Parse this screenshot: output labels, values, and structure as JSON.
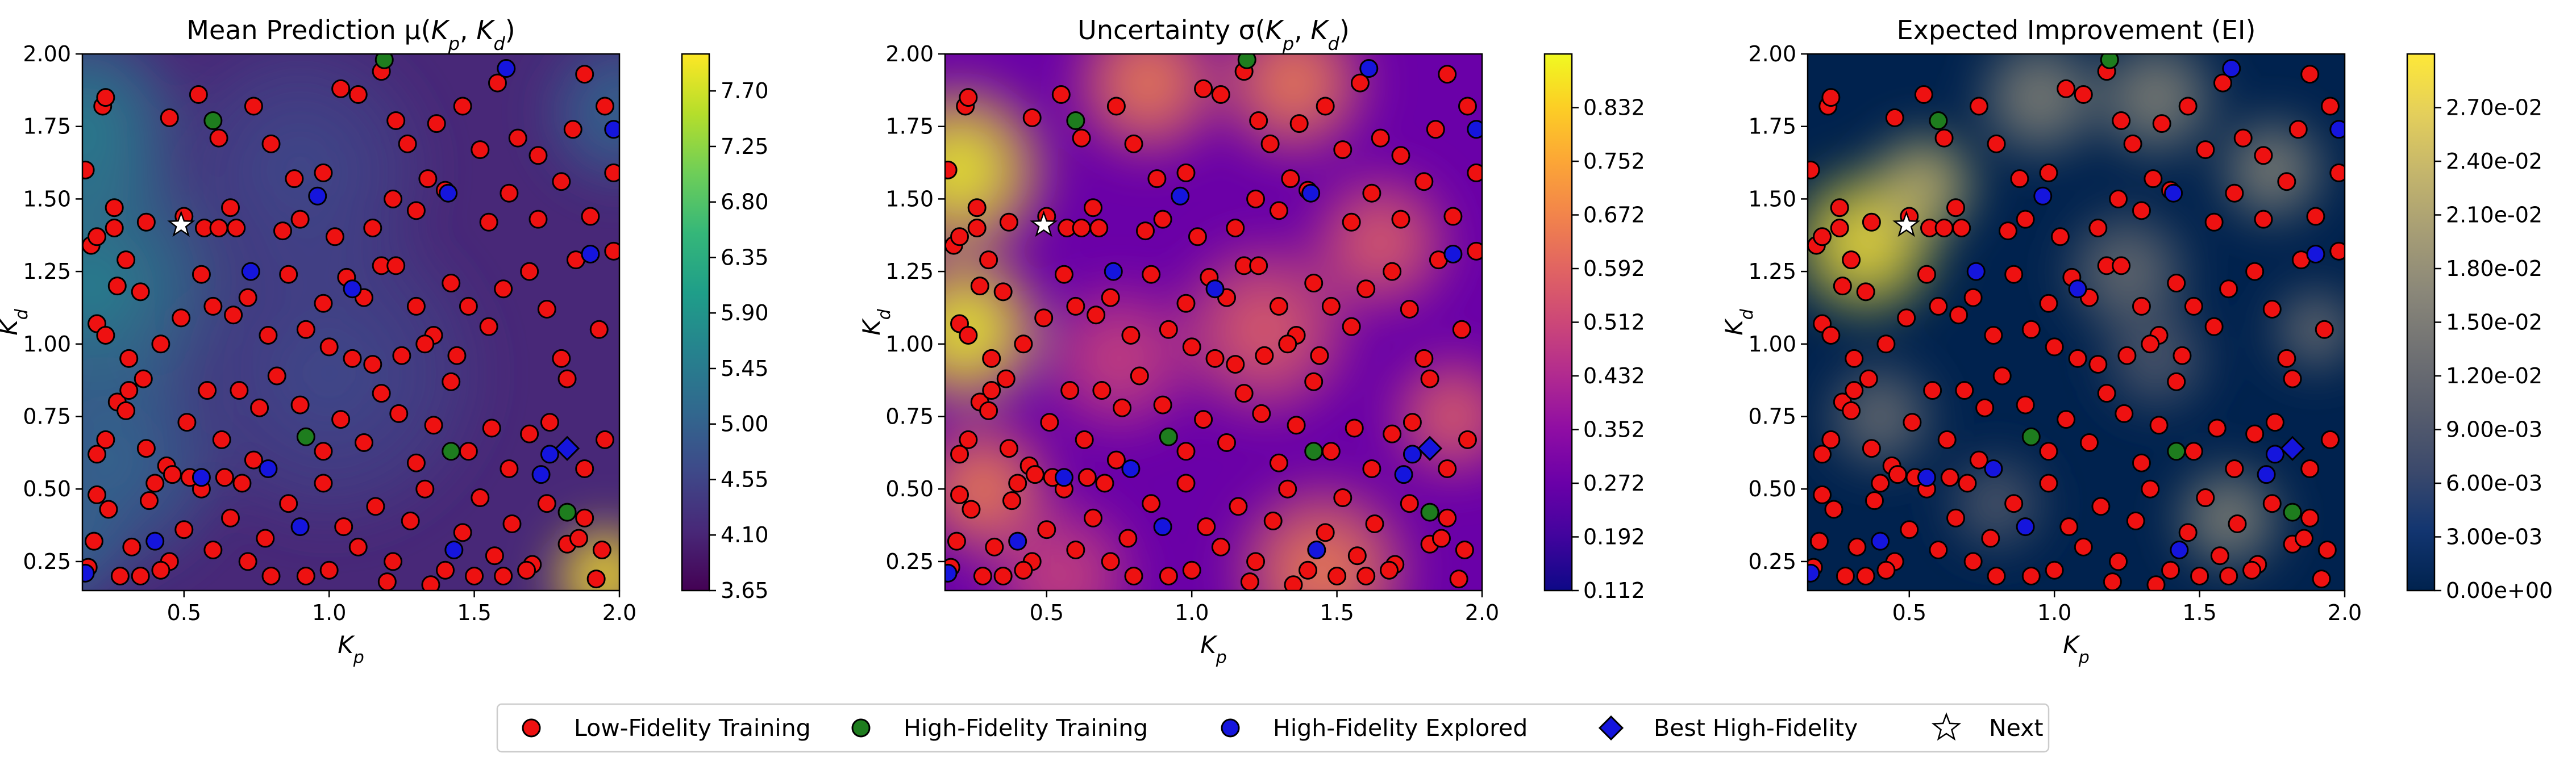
{
  "legend": {
    "placement": "bottom-center",
    "items": [
      {
        "label": "Low-Fidelity Training",
        "marker": "circle",
        "color": "#ee1111"
      },
      {
        "label": "High-Fidelity Training",
        "marker": "circle",
        "color": "#1e7d1e"
      },
      {
        "label": "High-Fidelity Explored",
        "marker": "circle",
        "color": "#1515dd"
      },
      {
        "label": "Best High-Fidelity",
        "marker": "diamond",
        "color": "#1515dd"
      },
      {
        "label": "Next",
        "marker": "star",
        "color": "#ffffff"
      }
    ]
  },
  "chart_data": [
    {
      "type": "heatmap",
      "title": "Mean Prediction μ(K_p, K_d)",
      "title_main": "Mean Prediction μ(",
      "xlabel": "K_p",
      "ylabel": "K_d",
      "xlim": [
        0.15,
        2.0
      ],
      "ylim": [
        0.15,
        2.0
      ],
      "xticks": [
        "0.5",
        "1.0",
        "1.5",
        "2.0"
      ],
      "yticks": [
        "0.25",
        "0.50",
        "0.75",
        "1.00",
        "1.25",
        "1.50",
        "1.75",
        "2.00"
      ],
      "colormap": "viridis",
      "colorbar_range": [
        3.65,
        8.0
      ],
      "colorbar_ticks": [
        "3.65",
        "4.10",
        "4.55",
        "5.00",
        "5.45",
        "5.90",
        "6.35",
        "6.80",
        "7.25",
        "7.70"
      ],
      "grid": false
    },
    {
      "type": "heatmap",
      "title": "Uncertainty σ(K_p, K_d)",
      "title_main": "Uncertainty σ(",
      "xlabel": "K_p",
      "ylabel": "K_d",
      "xlim": [
        0.15,
        2.0
      ],
      "ylim": [
        0.15,
        2.0
      ],
      "xticks": [
        "0.5",
        "1.0",
        "1.5",
        "2.0"
      ],
      "yticks": [
        "0.25",
        "0.50",
        "0.75",
        "1.00",
        "1.25",
        "1.50",
        "1.75",
        "2.00"
      ],
      "colormap": "plasma",
      "colorbar_range": [
        0.112,
        0.912
      ],
      "colorbar_ticks": [
        "0.112",
        "0.192",
        "0.272",
        "0.352",
        "0.432",
        "0.512",
        "0.592",
        "0.672",
        "0.752",
        "0.832"
      ],
      "grid": false
    },
    {
      "type": "heatmap",
      "title": "Expected Improvement (EI)",
      "title_main": "Expected Improvement (EI)",
      "xlabel": "K_p",
      "ylabel": "K_d",
      "xlim": [
        0.15,
        2.0
      ],
      "ylim": [
        0.15,
        2.0
      ],
      "xticks": [
        "0.5",
        "1.0",
        "1.5",
        "2.0"
      ],
      "yticks": [
        "0.25",
        "0.50",
        "0.75",
        "1.00",
        "1.25",
        "1.50",
        "1.75",
        "2.00"
      ],
      "colormap": "cividis",
      "colorbar_range": [
        0.0,
        0.03
      ],
      "colorbar_ticks": [
        "0.00e+00",
        "3.00e-03",
        "6.00e-03",
        "9.00e-03",
        "1.20e-02",
        "1.50e-02",
        "1.80e-02",
        "2.10e-02",
        "2.40e-02",
        "2.70e-02"
      ],
      "grid": false
    }
  ],
  "points": {
    "low_fidelity": [
      [
        0.16,
        1.6
      ],
      [
        0.18,
        1.34
      ],
      [
        0.2,
        1.37
      ],
      [
        0.22,
        1.82
      ],
      [
        0.23,
        1.85
      ],
      [
        0.26,
        1.47
      ],
      [
        0.3,
        1.29
      ],
      [
        0.37,
        1.42
      ],
      [
        0.45,
        1.78
      ],
      [
        0.55,
        1.86
      ],
      [
        0.62,
        1.71
      ],
      [
        0.66,
        1.47
      ],
      [
        0.74,
        1.82
      ],
      [
        0.8,
        1.69
      ],
      [
        0.88,
        1.57
      ],
      [
        0.98,
        1.59
      ],
      [
        1.04,
        1.88
      ],
      [
        1.1,
        1.86
      ],
      [
        1.18,
        1.94
      ],
      [
        1.23,
        1.77
      ],
      [
        1.27,
        1.69
      ],
      [
        1.37,
        1.76
      ],
      [
        1.46,
        1.82
      ],
      [
        1.52,
        1.67
      ],
      [
        1.58,
        1.9
      ],
      [
        1.65,
        1.71
      ],
      [
        1.72,
        1.65
      ],
      [
        1.84,
        1.74
      ],
      [
        1.88,
        1.93
      ],
      [
        1.95,
        1.82
      ],
      [
        1.98,
        1.59
      ],
      [
        0.2,
        1.07
      ],
      [
        0.23,
        1.03
      ],
      [
        0.27,
        1.2
      ],
      [
        0.35,
        1.18
      ],
      [
        0.42,
        1.0
      ],
      [
        0.49,
        1.09
      ],
      [
        0.56,
        1.24
      ],
      [
        0.6,
        1.13
      ],
      [
        0.67,
        1.1
      ],
      [
        0.72,
        1.16
      ],
      [
        0.79,
        1.03
      ],
      [
        0.86,
        1.24
      ],
      [
        0.92,
        1.05
      ],
      [
        0.98,
        1.14
      ],
      [
        1.06,
        1.23
      ],
      [
        1.12,
        1.16
      ],
      [
        1.18,
        1.27
      ],
      [
        1.23,
        1.27
      ],
      [
        1.3,
        1.13
      ],
      [
        1.36,
        1.03
      ],
      [
        1.42,
        1.21
      ],
      [
        1.48,
        1.13
      ],
      [
        1.55,
        1.06
      ],
      [
        1.6,
        1.19
      ],
      [
        1.69,
        1.25
      ],
      [
        1.75,
        1.12
      ],
      [
        1.8,
        0.95
      ],
      [
        1.85,
        1.29
      ],
      [
        1.93,
        1.05
      ],
      [
        1.98,
        1.32
      ],
      [
        0.2,
        0.62
      ],
      [
        0.23,
        0.67
      ],
      [
        0.27,
        0.8
      ],
      [
        0.31,
        0.84
      ],
      [
        0.37,
        0.64
      ],
      [
        0.44,
        0.58
      ],
      [
        0.51,
        0.73
      ],
      [
        0.58,
        0.84
      ],
      [
        0.63,
        0.67
      ],
      [
        0.69,
        0.84
      ],
      [
        0.76,
        0.78
      ],
      [
        0.82,
        0.89
      ],
      [
        0.9,
        0.79
      ],
      [
        0.98,
        0.63
      ],
      [
        1.04,
        0.74
      ],
      [
        1.12,
        0.66
      ],
      [
        1.18,
        0.83
      ],
      [
        1.24,
        0.76
      ],
      [
        1.3,
        0.59
      ],
      [
        1.36,
        0.72
      ],
      [
        1.42,
        0.87
      ],
      [
        1.48,
        0.63
      ],
      [
        1.56,
        0.71
      ],
      [
        1.62,
        0.57
      ],
      [
        1.69,
        0.69
      ],
      [
        1.76,
        0.73
      ],
      [
        1.82,
        0.88
      ],
      [
        1.88,
        0.57
      ],
      [
        1.95,
        0.67
      ],
      [
        0.19,
        0.32
      ],
      [
        0.24,
        0.43
      ],
      [
        0.32,
        0.3
      ],
      [
        0.38,
        0.46
      ],
      [
        0.45,
        0.25
      ],
      [
        0.5,
        0.36
      ],
      [
        0.56,
        0.5
      ],
      [
        0.6,
        0.29
      ],
      [
        0.66,
        0.4
      ],
      [
        0.72,
        0.25
      ],
      [
        0.78,
        0.33
      ],
      [
        0.86,
        0.45
      ],
      [
        0.92,
        0.2
      ],
      [
        0.98,
        0.52
      ],
      [
        1.05,
        0.37
      ],
      [
        1.1,
        0.3
      ],
      [
        1.16,
        0.44
      ],
      [
        1.22,
        0.25
      ],
      [
        1.28,
        0.39
      ],
      [
        1.33,
        0.5
      ],
      [
        1.4,
        0.22
      ],
      [
        1.46,
        0.35
      ],
      [
        1.52,
        0.47
      ],
      [
        1.57,
        0.27
      ],
      [
        1.63,
        0.38
      ],
      [
        1.7,
        0.24
      ],
      [
        1.75,
        0.45
      ],
      [
        1.82,
        0.31
      ],
      [
        1.88,
        0.4
      ],
      [
        1.94,
        0.29
      ],
      [
        0.5,
        1.44
      ],
      [
        0.57,
        1.4
      ],
      [
        0.62,
        1.4
      ],
      [
        0.68,
        1.4
      ],
      [
        0.4,
        0.52
      ],
      [
        0.46,
        0.55
      ],
      [
        0.52,
        0.54
      ],
      [
        0.64,
        0.54
      ],
      [
        0.7,
        0.52
      ],
      [
        0.74,
        0.6
      ],
      [
        0.31,
        0.95
      ],
      [
        0.36,
        0.88
      ],
      [
        0.26,
        1.4
      ],
      [
        0.3,
        0.77
      ],
      [
        1.0,
        0.99
      ],
      [
        1.08,
        0.95
      ],
      [
        1.15,
        0.93
      ],
      [
        1.25,
        0.96
      ],
      [
        1.33,
        1.0
      ],
      [
        1.44,
        0.96
      ],
      [
        0.84,
        1.39
      ],
      [
        0.9,
        1.43
      ],
      [
        1.02,
        1.37
      ],
      [
        1.15,
        1.4
      ],
      [
        1.22,
        1.5
      ],
      [
        1.3,
        1.46
      ],
      [
        1.34,
        1.57
      ],
      [
        1.4,
        1.53
      ],
      [
        1.55,
        1.42
      ],
      [
        1.62,
        1.52
      ],
      [
        1.72,
        1.43
      ],
      [
        1.8,
        1.56
      ],
      [
        1.9,
        1.44
      ],
      [
        0.2,
        0.48
      ],
      [
        0.17,
        0.23
      ],
      [
        0.28,
        0.2
      ],
      [
        0.35,
        0.2
      ],
      [
        0.42,
        0.22
      ],
      [
        0.8,
        0.2
      ],
      [
        1.0,
        0.22
      ],
      [
        1.2,
        0.18
      ],
      [
        1.35,
        0.17
      ],
      [
        1.5,
        0.2
      ],
      [
        1.6,
        0.2
      ],
      [
        1.68,
        0.22
      ],
      [
        1.86,
        0.33
      ],
      [
        1.92,
        0.19
      ]
    ],
    "high_fidelity": [
      [
        0.6,
        1.77
      ],
      [
        1.19,
        1.98
      ],
      [
        0.92,
        0.68
      ],
      [
        1.42,
        0.63
      ],
      [
        1.82,
        0.42
      ]
    ],
    "explored": [
      [
        0.73,
        1.25
      ],
      [
        0.96,
        1.51
      ],
      [
        1.08,
        1.19
      ],
      [
        1.41,
        1.52
      ],
      [
        1.9,
        1.31
      ],
      [
        1.61,
        1.95
      ],
      [
        0.56,
        0.54
      ],
      [
        0.79,
        0.57
      ],
      [
        0.9,
        0.37
      ],
      [
        0.4,
        0.32
      ],
      [
        1.43,
        0.29
      ],
      [
        1.76,
        0.62
      ],
      [
        1.73,
        0.55
      ],
      [
        0.16,
        0.21
      ],
      [
        1.98,
        1.74
      ]
    ],
    "best": [
      [
        1.82,
        0.64
      ]
    ],
    "next": [
      [
        0.49,
        1.41
      ]
    ]
  }
}
